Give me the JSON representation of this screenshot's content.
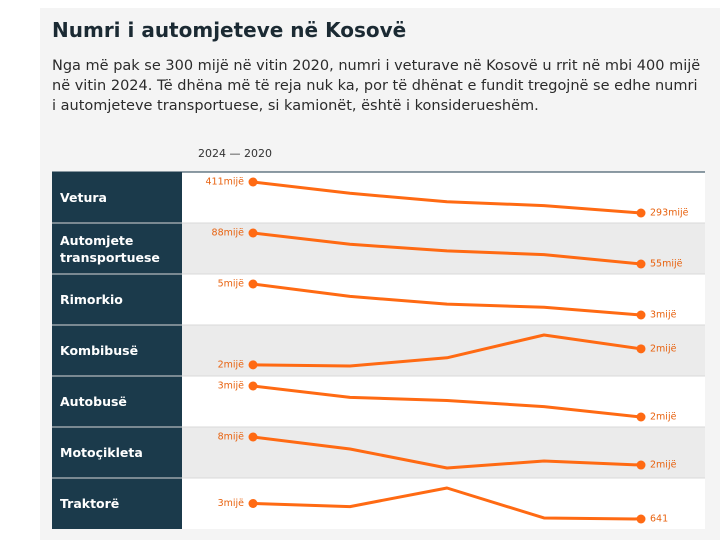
{
  "chart_data": {
    "type": "line",
    "title": "Numri i automjeteve në Kosovë",
    "subtitle": "Nga më pak se 300 mijë në vitin 2020, numri i veturave në Kosovë u rrit në mbi 400 mijë në vitin 2024. Të dhëna më të reja nuk ka, por të dhënat e fundit tregojnë se edhe numri i automjeteve transportuese, si kamionët, është i konsiderueshëm.",
    "period": "2024 — 2020",
    "series": [
      {
        "name": "Vetura",
        "color": "#ff6a13",
        "values": [
          411000,
          368000,
          336000,
          321000,
          293000
        ],
        "value_labels": [
          "411mijë",
          null,
          null,
          null,
          "293mijë"
        ]
      },
      {
        "name": "Automjete transportuese",
        "color": "#ff6a13",
        "values": [
          88000,
          76000,
          69000,
          65000,
          55000
        ],
        "value_labels": [
          "88mijë",
          null,
          null,
          null,
          "55mijë"
        ]
      },
      {
        "name": "Rimorkio",
        "color": "#ff6a13",
        "values": [
          5000,
          4200,
          3700,
          3500,
          3000
        ],
        "value_labels": [
          "5mijë",
          null,
          null,
          null,
          "3mijë"
        ]
      },
      {
        "name": "Kombibusë",
        "color": "#ff6a13",
        "values": [
          1600,
          1570,
          1790,
          2400,
          2030
        ],
        "value_labels": [
          "2mijë",
          null,
          null,
          null,
          "2mijë"
        ]
      },
      {
        "name": "Autobusë",
        "color": "#ff6a13",
        "values": [
          2600,
          2380,
          2320,
          2200,
          2000
        ],
        "value_labels": [
          "3mijë",
          null,
          null,
          null,
          "2mijë"
        ]
      },
      {
        "name": "Motoçikleta",
        "color": "#ff6a13",
        "values": [
          7800,
          5480,
          1800,
          3150,
          2370
        ],
        "value_labels": [
          "8mijë",
          null,
          null,
          null,
          "2mijë"
        ]
      },
      {
        "name": "Traktorë",
        "color": "#ff6a13",
        "values": [
          3000,
          2530,
          5360,
          800,
          641
        ],
        "value_labels": [
          "3mijë",
          null,
          null,
          null,
          "641"
        ]
      }
    ]
  }
}
